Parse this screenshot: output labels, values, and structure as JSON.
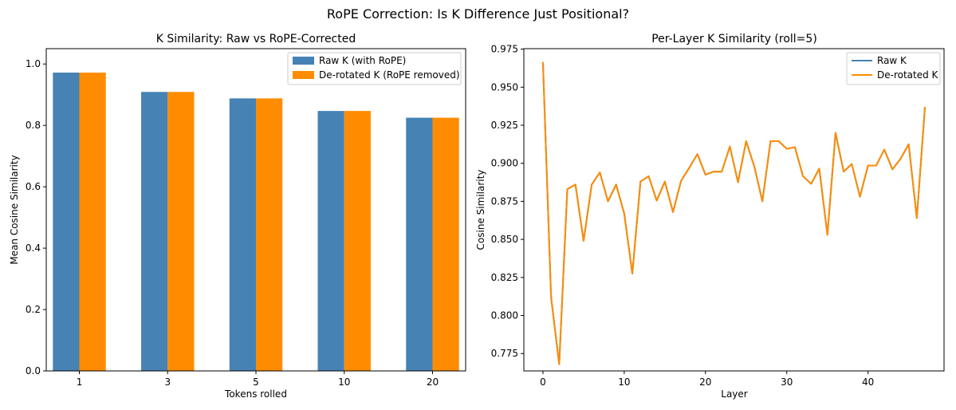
{
  "suptitle": "RoPE Correction: Is K Difference Just Positional?",
  "colors": {
    "raw": "#4682b4",
    "derotated": "#ff8c00"
  },
  "chart_data": [
    {
      "type": "bar",
      "title": "K Similarity: Raw vs RoPE-Corrected",
      "xlabel": "Tokens rolled",
      "ylabel": "Mean Cosine Similarity",
      "categories": [
        "1",
        "3",
        "5",
        "10",
        "20"
      ],
      "ylim": [
        0,
        1.05
      ],
      "yticks": [
        "0.0",
        "0.2",
        "0.4",
        "0.6",
        "0.8",
        "1.0"
      ],
      "legend_position": "top-right",
      "series": [
        {
          "name": "Raw K (with RoPE)",
          "color": "#4682b4",
          "values": [
            0.972,
            0.909,
            0.888,
            0.847,
            0.825
          ]
        },
        {
          "name": "De-rotated K (RoPE removed)",
          "color": "#ff8c00",
          "values": [
            0.972,
            0.909,
            0.888,
            0.847,
            0.825
          ]
        }
      ]
    },
    {
      "type": "line",
      "title": "Per-Layer K Similarity (roll=5)",
      "xlabel": "Layer",
      "ylabel": "Cosine Similarity",
      "xlim": [
        -2.35,
        49.35
      ],
      "ylim": [
        0.7636,
        0.9753
      ],
      "xticks": [
        "0",
        "10",
        "20",
        "30",
        "40"
      ],
      "yticks": [
        "0.775",
        "0.800",
        "0.825",
        "0.850",
        "0.875",
        "0.900",
        "0.925",
        "0.950",
        "0.975"
      ],
      "legend_position": "top-right",
      "x": [
        0,
        1,
        2,
        3,
        4,
        5,
        6,
        7,
        8,
        9,
        10,
        11,
        12,
        13,
        14,
        15,
        16,
        17,
        18,
        19,
        20,
        21,
        22,
        23,
        24,
        25,
        26,
        27,
        28,
        29,
        30,
        31,
        32,
        33,
        34,
        35,
        36,
        37,
        38,
        39,
        40,
        41,
        42,
        43,
        44,
        45,
        46,
        47
      ],
      "series": [
        {
          "name": "Raw K",
          "color": "#4682b4",
          "values": [
            0.9665,
            0.812,
            0.768,
            0.883,
            0.886,
            0.849,
            0.886,
            0.894,
            0.875,
            0.886,
            0.867,
            0.8275,
            0.888,
            0.8915,
            0.8755,
            0.888,
            0.868,
            0.8885,
            0.897,
            0.906,
            0.8925,
            0.8945,
            0.8945,
            0.911,
            0.8875,
            0.9145,
            0.898,
            0.875,
            0.9145,
            0.9145,
            0.9095,
            0.9105,
            0.8915,
            0.8865,
            0.8965,
            0.853,
            0.92,
            0.8945,
            0.8995,
            0.878,
            0.8985,
            0.8985,
            0.909,
            0.896,
            0.903,
            0.9125,
            0.864,
            0.937
          ]
        },
        {
          "name": "De-rotated K",
          "color": "#ff8c00",
          "values": [
            0.9665,
            0.812,
            0.768,
            0.883,
            0.886,
            0.849,
            0.886,
            0.894,
            0.875,
            0.886,
            0.867,
            0.8275,
            0.888,
            0.8915,
            0.8755,
            0.888,
            0.868,
            0.8885,
            0.897,
            0.906,
            0.8925,
            0.8945,
            0.8945,
            0.911,
            0.8875,
            0.9145,
            0.898,
            0.875,
            0.9145,
            0.9145,
            0.9095,
            0.9105,
            0.8915,
            0.8865,
            0.8965,
            0.853,
            0.92,
            0.8945,
            0.8995,
            0.878,
            0.8985,
            0.8985,
            0.909,
            0.896,
            0.903,
            0.9125,
            0.864,
            0.937
          ]
        }
      ]
    }
  ]
}
